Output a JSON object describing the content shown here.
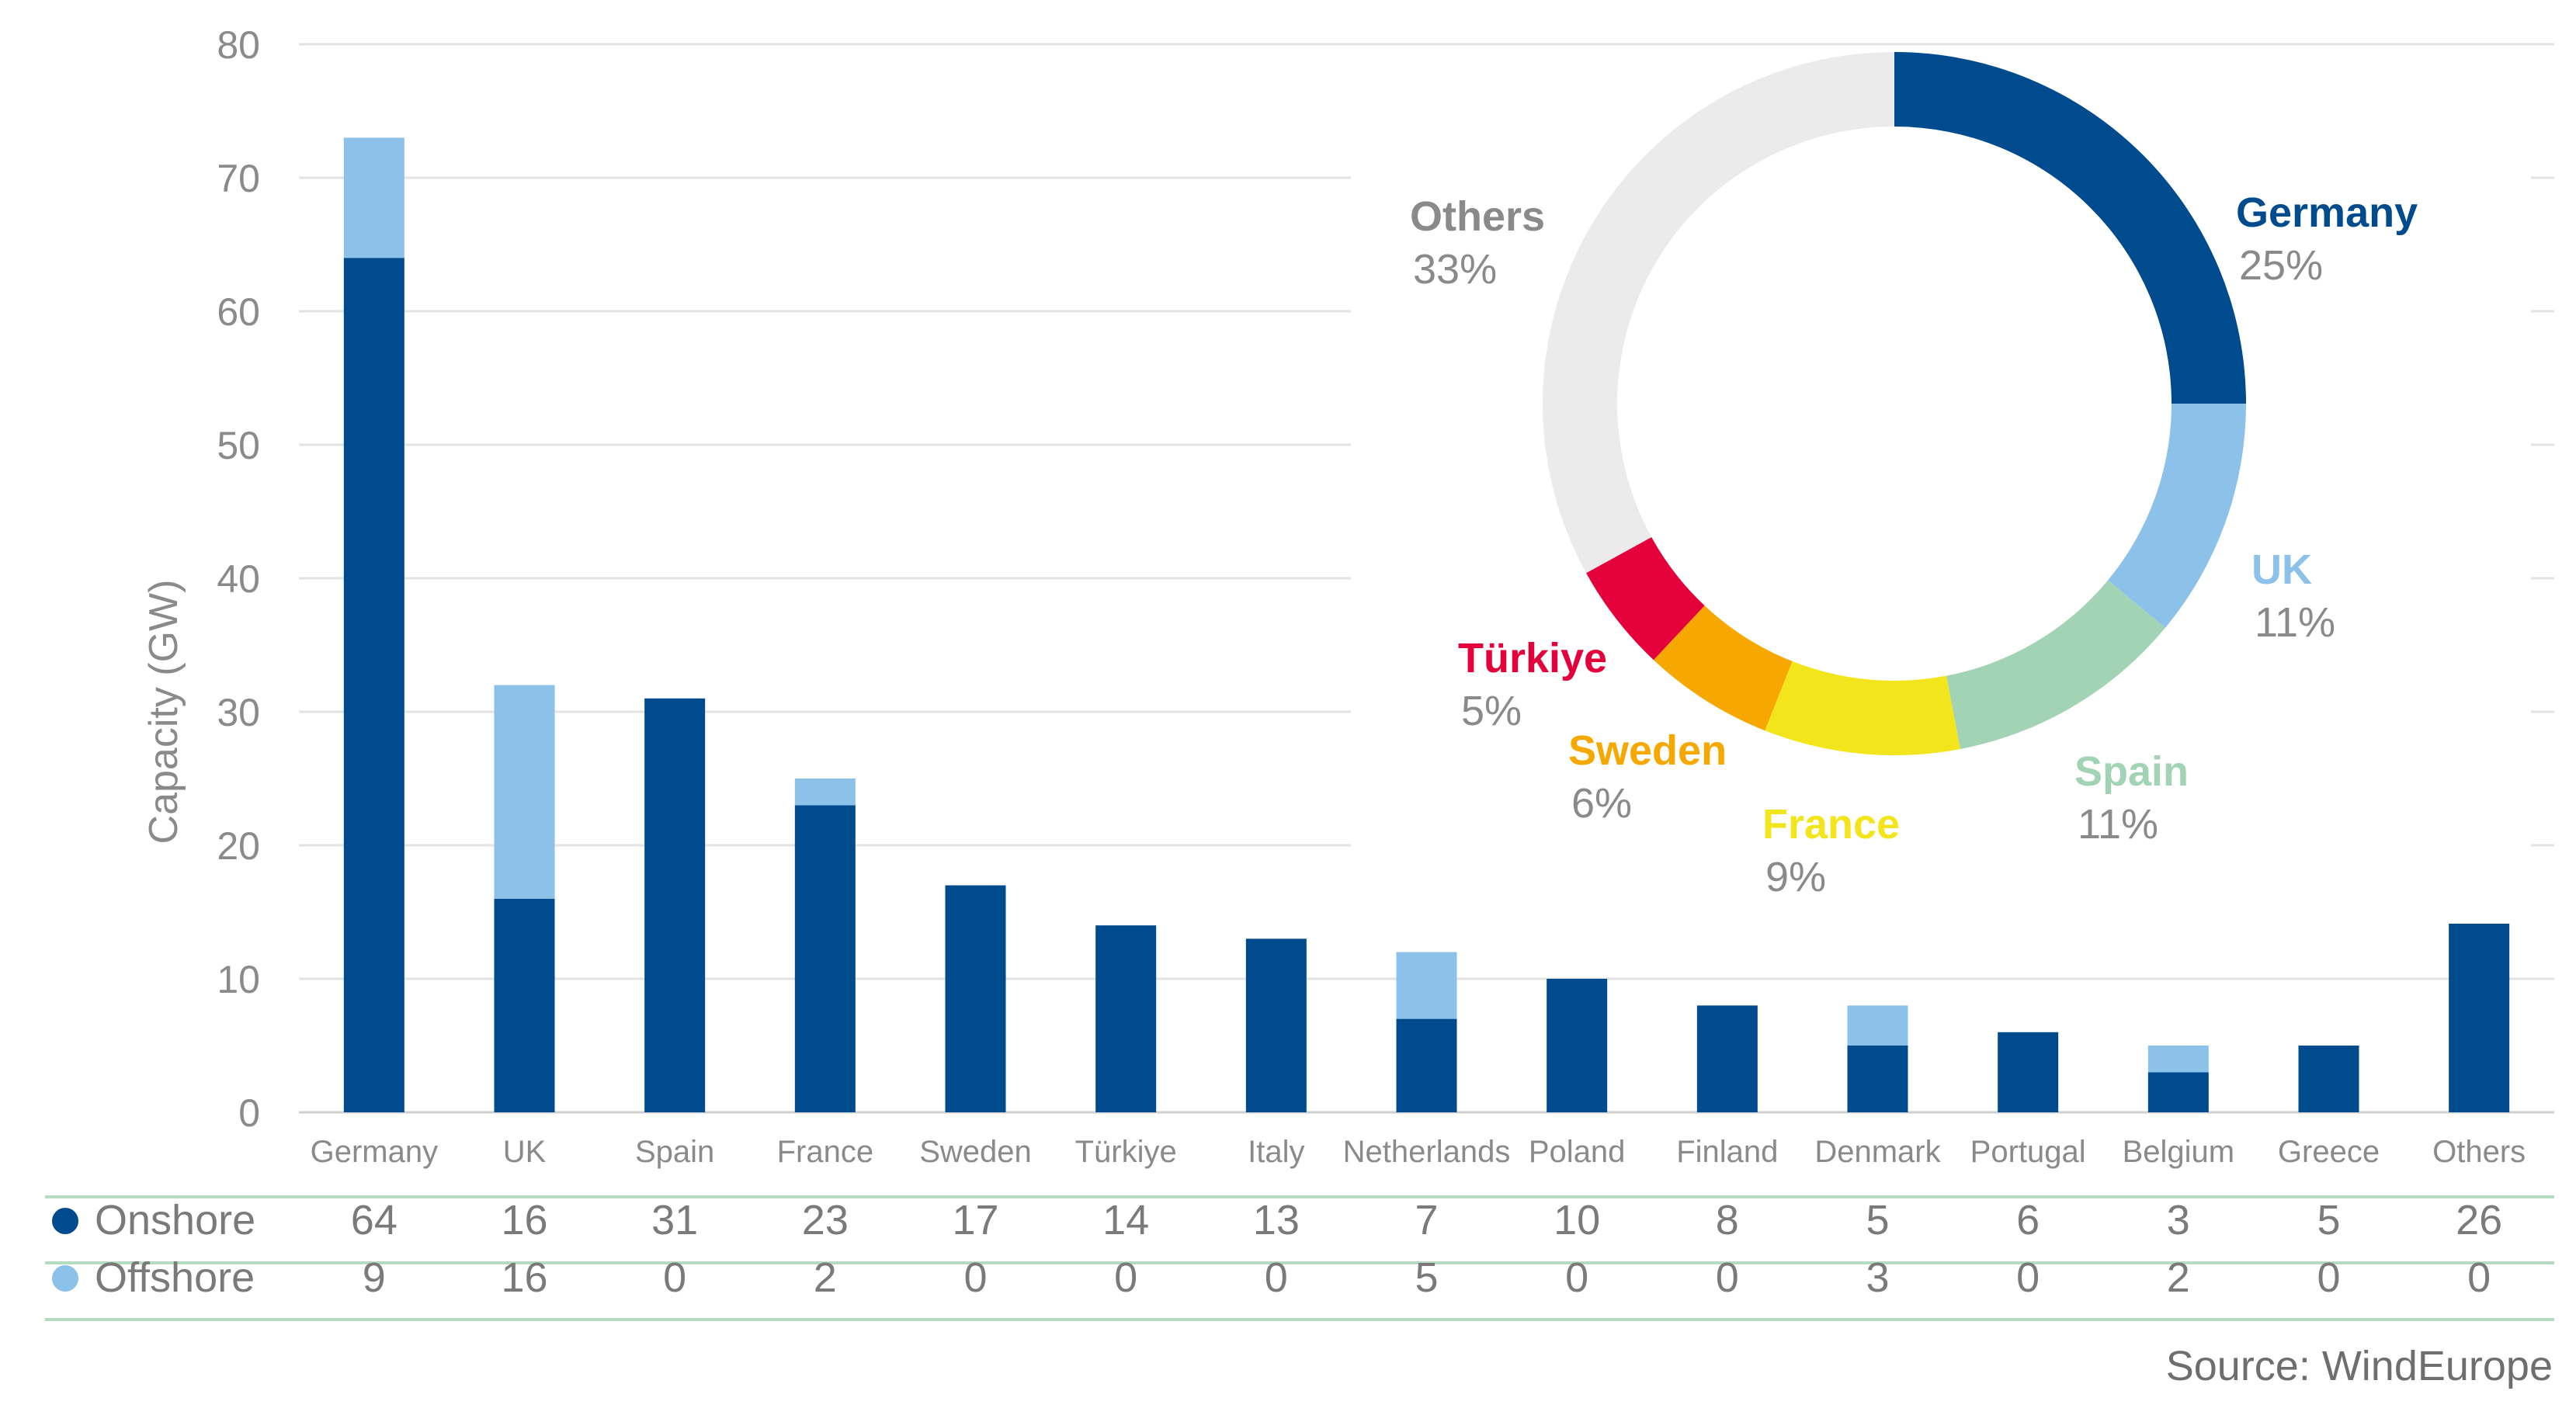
{
  "chart_data": [
    {
      "type": "bar",
      "stacked": true,
      "ylabel": "Capacity (GW)",
      "xlabel": "",
      "ylim": [
        0,
        80
      ],
      "yticks": [
        0,
        10,
        20,
        30,
        40,
        50,
        60,
        70,
        80
      ],
      "grid": true,
      "categories": [
        "Germany",
        "UK",
        "Spain",
        "France",
        "Sweden",
        "Türkiye",
        "Italy",
        "Netherlands",
        "Poland",
        "Finland",
        "Denmark",
        "Portugal",
        "Belgium",
        "Greece",
        "Others"
      ],
      "series": [
        {
          "name": "Onshore",
          "color": "#004b8d",
          "values": [
            64,
            16,
            31,
            23,
            17,
            14,
            13,
            7,
            10,
            8,
            5,
            6,
            3,
            5,
            26
          ]
        },
        {
          "name": "Offshore",
          "color": "#8cc1ea",
          "values": [
            9,
            16,
            0,
            2,
            0,
            0,
            0,
            5,
            0,
            0,
            3,
            0,
            2,
            0,
            0
          ]
        }
      ],
      "legend": "table-below"
    },
    {
      "type": "pie",
      "donut": true,
      "slices": [
        {
          "label": "Germany",
          "pct_label": "25%",
          "value": 25,
          "color": "#004b8d"
        },
        {
          "label": "UK",
          "pct_label": "11%",
          "value": 11,
          "color": "#8cc1ea"
        },
        {
          "label": "Spain",
          "pct_label": "11%",
          "value": 11,
          "color": "#a3d3b5"
        },
        {
          "label": "France",
          "pct_label": "9%",
          "value": 9,
          "color": "#f2e51c"
        },
        {
          "label": "Sweden",
          "pct_label": "6%",
          "value": 6,
          "color": "#f6a800"
        },
        {
          "label": "Türkiye",
          "pct_label": "5%",
          "value": 5,
          "color": "#e4003b"
        },
        {
          "label": "Others",
          "pct_label": "33%",
          "value": 33,
          "color": "#ebebeb"
        }
      ]
    }
  ],
  "source": "Source: WindEurope",
  "colors": {
    "grid": "#e3e3e3",
    "table_line": "#b5dcc0",
    "tick_text": "#8a8a8a",
    "data_text": "#7a7a7a"
  }
}
